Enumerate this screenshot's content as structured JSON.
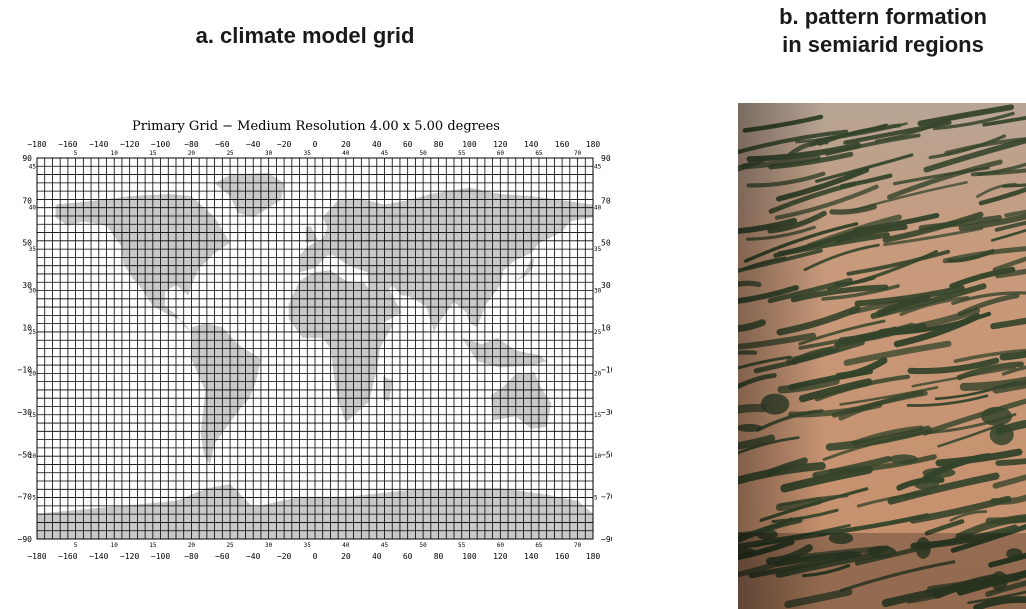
{
  "panel_a": {
    "title": "a. climate model grid",
    "figure_title": "Primary Grid − Medium Resolution  4.00 x 5.00 degrees",
    "lon_labels": [
      "−180",
      "−160",
      "−140",
      "−120",
      "−100",
      "−80",
      "−60",
      "−40",
      "−20",
      "0",
      "20",
      "40",
      "60",
      "80",
      "100",
      "120",
      "140",
      "160",
      "180"
    ],
    "lat_labels": [
      "90",
      "70",
      "50",
      "30",
      "10",
      "−10",
      "−30",
      "−50",
      "−70",
      "−90"
    ],
    "column_index_labels": [
      "5",
      "10",
      "15",
      "20",
      "25",
      "30",
      "35",
      "40",
      "45",
      "50",
      "55",
      "60",
      "65",
      "70"
    ],
    "row_index_labels": [
      "45",
      "40",
      "35",
      "30",
      "25",
      "20",
      "15",
      "10",
      "5"
    ],
    "grid": {
      "dlat": 4,
      "dlon": 5,
      "columns": 72,
      "rows": 46
    },
    "land_color": "#c8c8c8",
    "line_color": "#000000"
  },
  "panel_b": {
    "title_line1": "b. pattern formation",
    "title_line2": "in semiarid regions",
    "photo_description": "aerial photograph of banded vegetation",
    "sand_color": "#c99a7a",
    "vegetation_color": "#3a4a2a"
  }
}
